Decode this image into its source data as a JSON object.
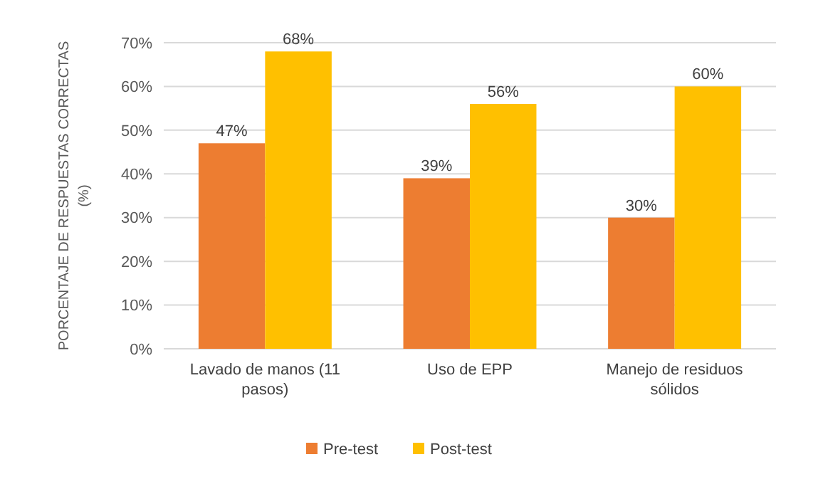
{
  "chart_data": {
    "type": "bar",
    "ylabel": "PORCENTAJE DE RESPUESTAS CORRECTAS (%)",
    "categories": [
      "Lavado de manos (11 pasos)",
      "Uso de EPP",
      "Manejo de residuos sólidos"
    ],
    "series": [
      {
        "name": "Pre-test",
        "color": "#ed7d31",
        "values": [
          47,
          39,
          30
        ],
        "value_labels": [
          "47%",
          "39%",
          "30%"
        ]
      },
      {
        "name": "Post-test",
        "color": "#ffc000",
        "values": [
          68,
          56,
          60
        ],
        "value_labels": [
          "68%",
          "56%",
          "60%"
        ]
      }
    ],
    "ylim": [
      0,
      70
    ],
    "yticks": [
      {
        "value": 0,
        "label": "0%"
      },
      {
        "value": 10,
        "label": "10%"
      },
      {
        "value": 20,
        "label": "20%"
      },
      {
        "value": 30,
        "label": "30%"
      },
      {
        "value": 40,
        "label": "40%"
      },
      {
        "value": 50,
        "label": "50%"
      },
      {
        "value": 60,
        "label": "60%"
      },
      {
        "value": 70,
        "label": "70%"
      }
    ],
    "grid": "y",
    "legend": "bottom"
  }
}
